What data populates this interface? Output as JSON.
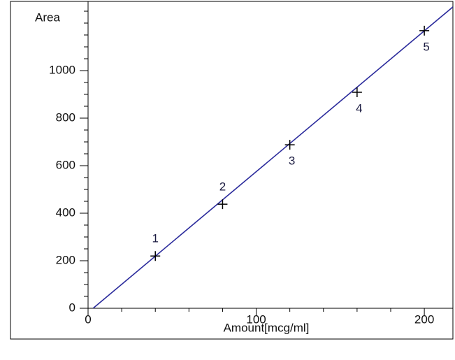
{
  "chart_data": {
    "type": "scatter",
    "title": "Area",
    "x_label": "Amount[mcg/ml]",
    "x": [
      40,
      80,
      120,
      160,
      200
    ],
    "values": [
      220,
      438,
      688,
      909,
      1168
    ],
    "point_labels": [
      "1",
      "2",
      "3",
      "4",
      "5"
    ],
    "label_position": [
      "above",
      "above",
      "below",
      "below",
      "below"
    ],
    "color": "#000000",
    "fit_line": {
      "x": [
        3,
        217
      ],
      "y": [
        0,
        1268
      ],
      "color": "#2b2b9c"
    },
    "xlim": [
      0,
      217
    ],
    "ylim": [
      0,
      1253
    ],
    "xticks": [
      0,
      100,
      200
    ],
    "yticks": [
      0,
      200,
      400,
      600,
      800,
      1000
    ],
    "xminorticks": [
      20,
      40,
      60,
      80,
      120,
      140,
      160,
      180
    ],
    "yminorticks": [
      50,
      100,
      150,
      250,
      300,
      350,
      450,
      500,
      550,
      650,
      700,
      750,
      850,
      900,
      950,
      1050,
      1100,
      1150,
      1200,
      1250
    ]
  }
}
